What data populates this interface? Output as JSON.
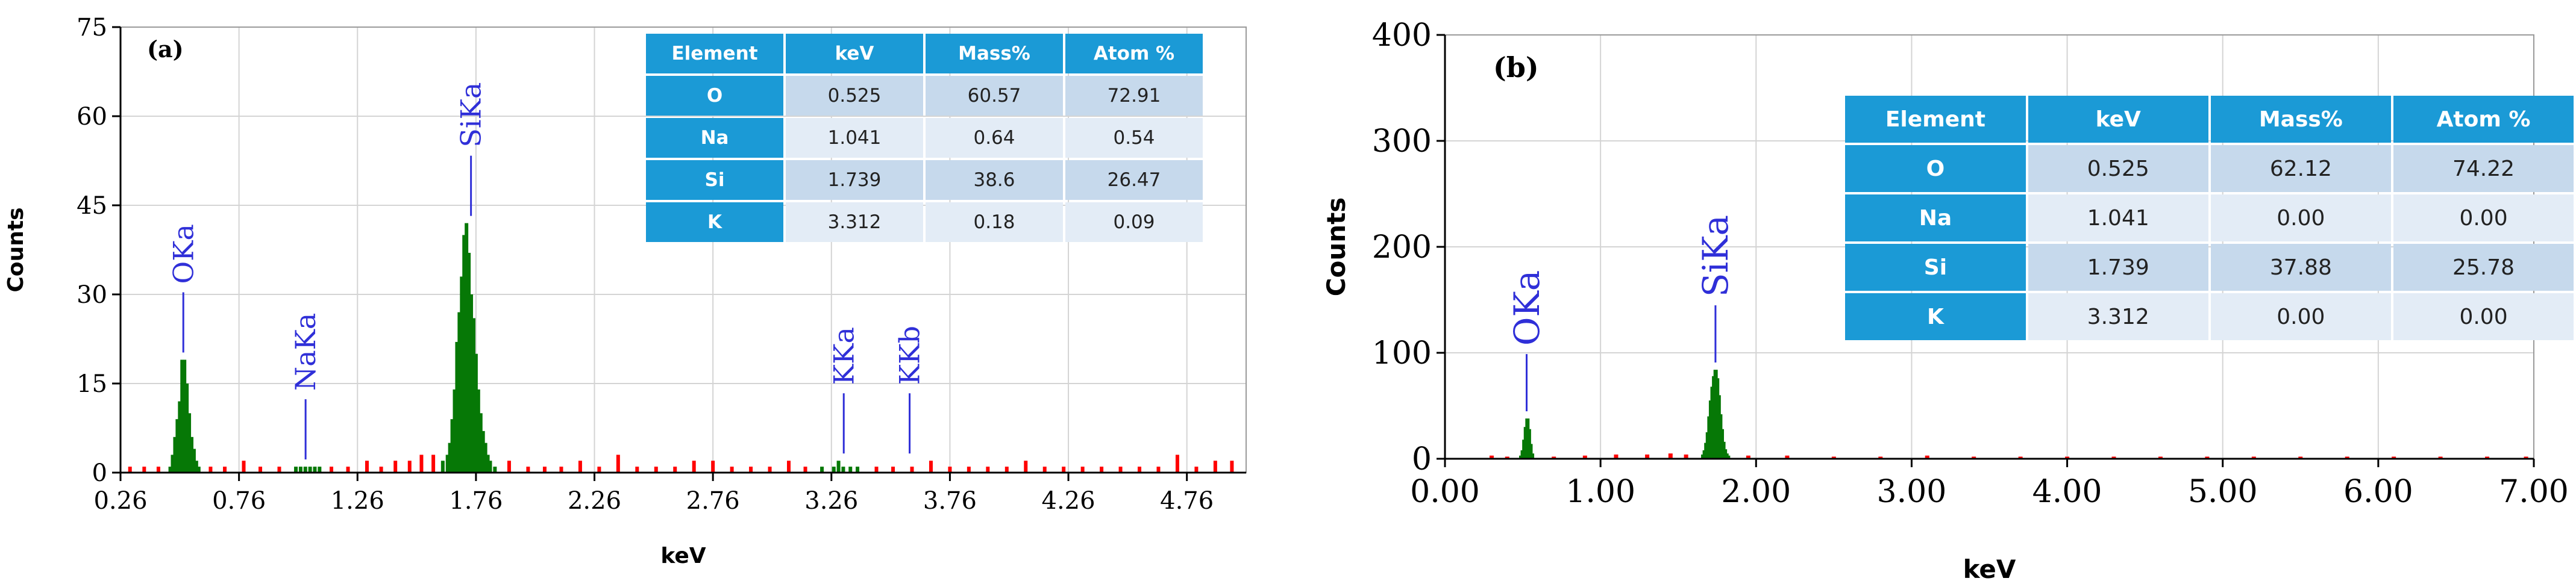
{
  "chart_data": [
    {
      "type": "bar",
      "panel_label": "(a)",
      "xlabel": "keV",
      "ylabel": "Counts",
      "xlim": [
        0.26,
        5.01
      ],
      "ylim": [
        0,
        75
      ],
      "xticks": [
        "0.26",
        "0.76",
        "1.26",
        "1.76",
        "2.26",
        "2.76",
        "3.26",
        "3.76",
        "4.26",
        "4.76"
      ],
      "yticks": [
        "0",
        "15",
        "30",
        "45",
        "60",
        "75"
      ],
      "grid": true,
      "series": [
        {
          "color": "#067806",
          "x": [
            0.47,
            0.48,
            0.49,
            0.5,
            0.51,
            0.52,
            0.53,
            0.54,
            0.55,
            0.56,
            0.57,
            0.58,
            0.59,
            1.0,
            1.02,
            1.04,
            1.06,
            1.08,
            1.1,
            1.62,
            1.64,
            1.65,
            1.66,
            1.67,
            1.68,
            1.69,
            1.7,
            1.71,
            1.72,
            1.73,
            1.74,
            1.75,
            1.76,
            1.77,
            1.78,
            1.79,
            1.8,
            1.81,
            1.82,
            1.84,
            3.22,
            3.27,
            3.29,
            3.31,
            3.34,
            3.37
          ],
          "values": [
            1,
            3,
            6,
            9,
            12,
            19,
            19,
            15,
            10,
            6,
            4,
            2,
            1,
            1,
            1,
            1,
            1,
            1,
            1,
            2,
            3,
            5,
            9,
            14,
            22,
            27,
            33,
            40,
            42,
            37,
            30,
            26,
            20,
            14,
            10,
            7,
            5,
            3,
            2,
            1,
            1,
            1,
            2,
            1,
            1,
            1
          ]
        },
        {
          "color": "#ff0000",
          "x": [
            0.3,
            0.36,
            0.42,
            0.64,
            0.7,
            0.78,
            0.85,
            0.93,
            1.15,
            1.22,
            1.3,
            1.36,
            1.42,
            1.48,
            1.53,
            1.58,
            1.9,
            1.98,
            2.05,
            2.12,
            2.2,
            2.28,
            2.36,
            2.44,
            2.52,
            2.6,
            2.68,
            2.76,
            2.84,
            2.92,
            3.0,
            3.08,
            3.15,
            3.45,
            3.52,
            3.6,
            3.68,
            3.76,
            3.84,
            3.92,
            4.0,
            4.08,
            4.16,
            4.24,
            4.32,
            4.4,
            4.48,
            4.56,
            4.64,
            4.72,
            4.8,
            4.88,
            4.95
          ],
          "values": [
            1,
            1,
            1,
            1,
            1,
            2,
            1,
            1,
            1,
            1,
            2,
            1,
            2,
            2,
            3,
            3,
            2,
            1,
            1,
            1,
            2,
            1,
            3,
            1,
            1,
            1,
            2,
            2,
            1,
            1,
            1,
            2,
            1,
            1,
            1,
            1,
            2,
            1,
            1,
            1,
            1,
            2,
            1,
            1,
            1,
            1,
            1,
            1,
            1,
            3,
            1,
            2,
            2
          ]
        }
      ],
      "annotations": [
        {
          "text": "OKa",
          "x": 0.525
        },
        {
          "text": "NaKa",
          "x": 1.041
        },
        {
          "text": "SiKa",
          "x": 1.739
        },
        {
          "text": "KKa",
          "x": 3.312
        },
        {
          "text": "KKb",
          "x": 3.59
        }
      ]
    },
    {
      "type": "bar",
      "panel_label": "(b)",
      "xlabel": "keV",
      "ylabel": "Counts",
      "xlim": [
        0,
        7.0
      ],
      "ylim": [
        0,
        400
      ],
      "xticks": [
        "0.00",
        "1.00",
        "2.00",
        "3.00",
        "4.00",
        "5.00",
        "6.00",
        "7.00"
      ],
      "yticks": [
        "0",
        "100",
        "200",
        "300",
        "400"
      ],
      "grid": true,
      "series": [
        {
          "color": "#067806",
          "x": [
            0.49,
            0.5,
            0.51,
            0.52,
            0.53,
            0.54,
            0.55,
            0.56,
            1.66,
            1.67,
            1.68,
            1.69,
            1.7,
            1.71,
            1.72,
            1.73,
            1.74,
            1.75,
            1.76,
            1.77,
            1.78,
            1.79,
            1.8,
            1.81,
            1.82
          ],
          "values": [
            3,
            8,
            18,
            30,
            38,
            28,
            14,
            5,
            4,
            8,
            15,
            25,
            40,
            55,
            68,
            78,
            84,
            76,
            60,
            42,
            28,
            16,
            9,
            5,
            3
          ]
        },
        {
          "color": "#ff0000",
          "x": [
            0.3,
            0.4,
            0.7,
            0.9,
            1.1,
            1.3,
            1.45,
            1.55,
            1.95,
            2.2,
            2.5,
            2.8,
            3.1,
            3.4,
            3.7,
            4.0,
            4.3,
            4.6,
            4.9,
            5.2,
            5.5,
            5.8,
            6.1,
            6.4,
            6.7,
            6.95
          ],
          "values": [
            3,
            2,
            2,
            3,
            4,
            4,
            5,
            4,
            3,
            3,
            2,
            2,
            3,
            2,
            2,
            2,
            2,
            2,
            2,
            2,
            2,
            2,
            2,
            2,
            2,
            2
          ]
        }
      ],
      "annotations": [
        {
          "text": "OKa",
          "x": 0.525
        },
        {
          "text": "SiKa",
          "x": 1.739
        }
      ]
    }
  ],
  "tables": [
    {
      "headers": [
        "Element",
        "keV",
        "Mass%",
        "Atom %"
      ],
      "rows": [
        [
          "O",
          "0.525",
          "60.57",
          "72.91"
        ],
        [
          "Na",
          "1.041",
          "0.64",
          "0.54"
        ],
        [
          "Si",
          "1.739",
          "38.6",
          "26.47"
        ],
        [
          "K",
          "3.312",
          "0.18",
          "0.09"
        ]
      ]
    },
    {
      "headers": [
        "Element",
        "keV",
        "Mass%",
        "Atom %"
      ],
      "rows": [
        [
          "O",
          "0.525",
          "62.12",
          "74.22"
        ],
        [
          "Na",
          "1.041",
          "0.00",
          "0.00"
        ],
        [
          "Si",
          "1.739",
          "37.88",
          "25.78"
        ],
        [
          "K",
          "3.312",
          "0.00",
          "0.00"
        ]
      ]
    }
  ]
}
